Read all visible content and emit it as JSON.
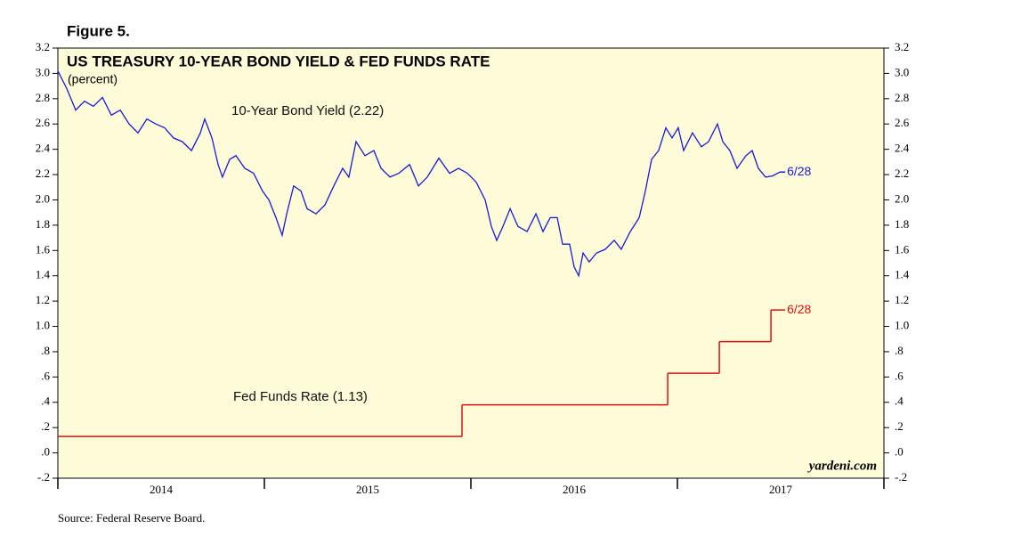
{
  "chart_data": {
    "type": "line",
    "figure_label": "Figure 5.",
    "title": "US TREASURY 10-YEAR BOND YIELD & FED FUNDS RATE",
    "subtitle": "(percent)",
    "watermark": "yardeni.com",
    "source": "Source: Federal Reserve Board.",
    "xlim": [
      2014,
      2018
    ],
    "xtick_marks": [
      2014,
      2015,
      2016,
      2017,
      2018
    ],
    "xticks": [
      {
        "value": 2014.5,
        "label": "2014"
      },
      {
        "value": 2015.5,
        "label": "2015"
      },
      {
        "value": 2016.5,
        "label": "2016"
      },
      {
        "value": 2017.5,
        "label": "2017"
      }
    ],
    "ylim": [
      -0.2,
      3.2
    ],
    "yticks": [
      {
        "value": -0.2,
        "label": "-.2"
      },
      {
        "value": 0,
        "label": ".0"
      },
      {
        "value": 0.2,
        "label": ".2"
      },
      {
        "value": 0.4,
        "label": ".4"
      },
      {
        "value": 0.6,
        "label": ".6"
      },
      {
        "value": 0.8,
        "label": ".8"
      },
      {
        "value": 1,
        "label": "1.0"
      },
      1.2,
      1.4,
      1.6,
      1.8,
      {
        "value": 2,
        "label": "2.0"
      },
      2.2,
      2.4,
      2.6,
      2.8,
      {
        "value": 3,
        "label": "3.0"
      },
      3.2
    ],
    "background": "#fdfbd8",
    "series": [
      {
        "name": "10-Year Bond Yield (2.22)",
        "color": "#1a1adc",
        "style": "line",
        "end_label": "6/28",
        "x": [
          2014.0,
          2014.043,
          2014.086,
          2014.129,
          2014.172,
          2014.216,
          2014.259,
          2014.302,
          2014.345,
          2014.388,
          2014.431,
          2014.474,
          2014.517,
          2014.56,
          2014.603,
          2014.647,
          2014.69,
          2014.711,
          2014.746,
          2014.776,
          2014.797,
          2014.832,
          2014.862,
          2014.905,
          2014.948,
          2014.991,
          2015.022,
          2015.056,
          2015.086,
          2015.108,
          2015.142,
          2015.177,
          2015.207,
          2015.25,
          2015.293,
          2015.336,
          2015.379,
          2015.409,
          2015.444,
          2015.487,
          2015.53,
          2015.565,
          2015.608,
          2015.651,
          2015.703,
          2015.746,
          2015.789,
          2015.845,
          2015.897,
          2015.94,
          2015.983,
          2016.026,
          2016.069,
          2016.099,
          2016.125,
          2016.155,
          2016.19,
          2016.228,
          2016.272,
          2016.315,
          2016.349,
          2016.384,
          2016.418,
          2016.444,
          2016.478,
          2016.5,
          2016.522,
          2016.543,
          2016.573,
          2016.608,
          2016.651,
          2016.694,
          2016.728,
          2016.772,
          2016.815,
          2016.845,
          2016.875,
          2016.909,
          2016.944,
          2016.974,
          2017.004,
          2017.03,
          2017.073,
          2017.116,
          2017.151,
          2017.194,
          2017.22,
          2017.254,
          2017.289,
          2017.332,
          2017.362,
          2017.392,
          2017.427,
          2017.461,
          2017.496
        ],
        "values": [
          3.02,
          2.88,
          2.71,
          2.78,
          2.74,
          2.81,
          2.67,
          2.71,
          2.6,
          2.53,
          2.64,
          2.6,
          2.57,
          2.49,
          2.46,
          2.39,
          2.53,
          2.64,
          2.49,
          2.28,
          2.18,
          2.32,
          2.35,
          2.25,
          2.21,
          2.07,
          2.0,
          1.86,
          1.72,
          1.89,
          2.11,
          2.07,
          1.93,
          1.89,
          1.96,
          2.11,
          2.25,
          2.18,
          2.46,
          2.35,
          2.39,
          2.25,
          2.18,
          2.21,
          2.28,
          2.11,
          2.18,
          2.33,
          2.21,
          2.25,
          2.21,
          2.14,
          2.0,
          1.79,
          1.68,
          1.79,
          1.93,
          1.79,
          1.75,
          1.89,
          1.75,
          1.86,
          1.86,
          1.65,
          1.65,
          1.47,
          1.4,
          1.58,
          1.51,
          1.58,
          1.61,
          1.68,
          1.61,
          1.75,
          1.86,
          2.07,
          2.32,
          2.39,
          2.57,
          2.49,
          2.57,
          2.39,
          2.53,
          2.42,
          2.46,
          2.6,
          2.46,
          2.39,
          2.25,
          2.35,
          2.39,
          2.25,
          2.18,
          2.19,
          2.22
        ]
      },
      {
        "name": "Fed Funds Rate (1.13)",
        "color": "#e01010",
        "style": "step",
        "end_label": "6/28",
        "x": [
          2014.0,
          2015.957,
          2016.953,
          2017.203,
          2017.453,
          2017.496
        ],
        "values": [
          0.13,
          0.38,
          0.63,
          0.88,
          1.13,
          1.13
        ]
      }
    ]
  }
}
